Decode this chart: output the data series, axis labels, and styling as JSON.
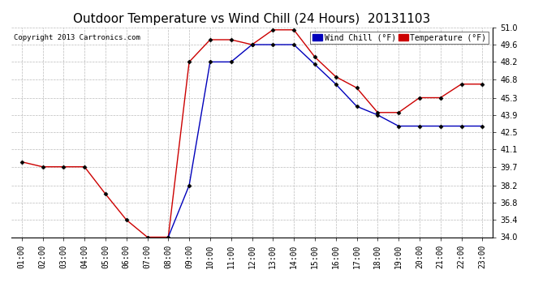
{
  "title": "Outdoor Temperature vs Wind Chill (24 Hours)  20131103",
  "copyright": "Copyright 2013 Cartronics.com",
  "legend_wind_chill": "Wind Chill (°F)",
  "legend_temperature": "Temperature (°F)",
  "x_ticks": [
    "01:00",
    "02:00",
    "03:00",
    "04:00",
    "05:00",
    "06:00",
    "07:00",
    "08:00",
    "09:00",
    "10:00",
    "11:00",
    "12:00",
    "13:00",
    "14:00",
    "15:00",
    "16:00",
    "17:00",
    "18:00",
    "19:00",
    "20:00",
    "21:00",
    "22:00",
    "23:00"
  ],
  "temperature": [
    40.1,
    39.7,
    39.7,
    39.7,
    37.5,
    35.4,
    34.0,
    34.0,
    48.2,
    50.0,
    50.0,
    49.6,
    50.8,
    50.8,
    48.6,
    47.0,
    46.1,
    44.1,
    44.1,
    45.3,
    45.3,
    46.4,
    46.4
  ],
  "wind_chill": [
    null,
    null,
    null,
    null,
    null,
    null,
    null,
    34.0,
    38.2,
    48.2,
    48.2,
    49.6,
    49.6,
    49.6,
    48.0,
    46.4,
    44.6,
    43.9,
    43.0,
    43.0,
    43.0,
    43.0,
    43.0
  ],
  "ylim": [
    34.0,
    51.0
  ],
  "yticks": [
    34.0,
    35.4,
    36.8,
    38.2,
    39.7,
    41.1,
    42.5,
    43.9,
    45.3,
    46.8,
    48.2,
    49.6,
    51.0
  ],
  "wind_chill_color": "#0000bb",
  "temperature_color": "#cc0000",
  "background_color": "#ffffff",
  "grid_color": "#bbbbbb",
  "title_fontsize": 11,
  "axis_fontsize": 7,
  "marker": "D",
  "marker_size": 2.5
}
